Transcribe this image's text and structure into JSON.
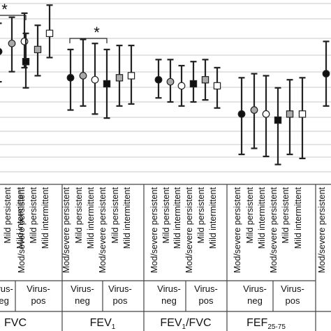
{
  "chart_data": {
    "type": "error-bar",
    "y_axis_visible": false,
    "grid": "horizontal",
    "legend": "none",
    "colors": {
      "mod_severe_persistent": "#111111",
      "mild_persistent": "#a9a9a9",
      "mild_intermittent": "#ffffff",
      "square_dark": "#111111",
      "square_mid": "#aaaaaa",
      "square_white": "#ffffff",
      "outline": "#222222"
    },
    "marker_shapes": {
      "virus_neg": "circle",
      "virus_pos": "square"
    },
    "subgroup_labels": [
      "Mod/severe persistent",
      "Mild persistent",
      "Mild intermittent"
    ],
    "virus_labels": {
      "neg": [
        "Virus-",
        "neg"
      ],
      "pos": [
        "Virus-",
        "pos"
      ],
      "neg_cut": [
        "Virus-",
        "neg"
      ]
    },
    "significance_marker": "*",
    "groups": [
      {
        "key": "fvc",
        "label": "FVC",
        "sub": "",
        "significance": "*",
        "series": [
          {
            "subgroup": "Mod/severe persistent",
            "virus": "neg",
            "shape": "circle",
            "fill": "#111111",
            "mean": 0.55,
            "low": -0.2,
            "high": 1.25
          },
          {
            "subgroup": "Mild persistent",
            "virus": "neg",
            "shape": "circle",
            "fill": "#a9a9a9",
            "mean": 0.75,
            "low": 0.05,
            "high": 1.4
          },
          {
            "subgroup": "Mild intermittent",
            "virus": "neg",
            "shape": "circle",
            "fill": "#ffffff",
            "mean": 0.8,
            "low": 0.15,
            "high": 1.5
          },
          {
            "subgroup": "Mod/severe persistent",
            "virus": "pos",
            "shape": "square",
            "fill": "#111111",
            "mean": 0.3,
            "low": -0.35,
            "high": 1.0
          },
          {
            "subgroup": "Mild persistent",
            "virus": "pos",
            "shape": "square",
            "fill": "#aaaaaa",
            "mean": 0.6,
            "low": -0.05,
            "high": 1.2
          },
          {
            "subgroup": "Mild intermittent",
            "virus": "pos",
            "shape": "square",
            "fill": "#ffffff",
            "mean": 1.0,
            "low": 0.4,
            "high": 1.7
          }
        ]
      },
      {
        "key": "fev1",
        "label": "FEV",
        "sub": "1",
        "significance": "*",
        "series": [
          {
            "subgroup": "Mod/severe persistent",
            "virus": "neg",
            "shape": "circle",
            "fill": "#111111",
            "mean": -0.1,
            "low": -0.9,
            "high": 0.6
          },
          {
            "subgroup": "Mild persistent",
            "virus": "neg",
            "shape": "circle",
            "fill": "#a9a9a9",
            "mean": -0.05,
            "low": -0.8,
            "high": 0.85
          },
          {
            "subgroup": "Mild intermittent",
            "virus": "neg",
            "shape": "circle",
            "fill": "#ffffff",
            "mean": -0.15,
            "low": -1.0,
            "high": 0.75
          },
          {
            "subgroup": "Mod/severe persistent",
            "virus": "pos",
            "shape": "square",
            "fill": "#111111",
            "mean": -0.25,
            "low": -1.1,
            "high": 0.6
          },
          {
            "subgroup": "Mild persistent",
            "virus": "pos",
            "shape": "square",
            "fill": "#aaaaaa",
            "mean": -0.1,
            "low": -0.8,
            "high": 0.7
          },
          {
            "subgroup": "Mild intermittent",
            "virus": "pos",
            "shape": "square",
            "fill": "#ffffff",
            "mean": -0.05,
            "low": -0.75,
            "high": 0.7
          }
        ]
      },
      {
        "key": "fev1fvc",
        "label": "FEV",
        "sub": "1",
        "suffix": "/FVC",
        "significance": "",
        "series": [
          {
            "subgroup": "Mod/severe persistent",
            "virus": "neg",
            "shape": "circle",
            "fill": "#111111",
            "mean": -0.15,
            "low": -0.6,
            "high": 0.35
          },
          {
            "subgroup": "Mild persistent",
            "virus": "neg",
            "shape": "circle",
            "fill": "#a9a9a9",
            "mean": -0.2,
            "low": -0.7,
            "high": 0.35
          },
          {
            "subgroup": "Mild intermittent",
            "virus": "neg",
            "shape": "circle",
            "fill": "#ffffff",
            "mean": -0.3,
            "low": -0.8,
            "high": 0.2
          },
          {
            "subgroup": "Mod/severe persistent",
            "virus": "pos",
            "shape": "square",
            "fill": "#111111",
            "mean": -0.25,
            "low": -0.7,
            "high": 0.3
          },
          {
            "subgroup": "Mild persistent",
            "virus": "pos",
            "shape": "square",
            "fill": "#aaaaaa",
            "mean": -0.15,
            "low": -0.65,
            "high": 0.35
          },
          {
            "subgroup": "Mild intermittent",
            "virus": "pos",
            "shape": "square",
            "fill": "#ffffff",
            "mean": -0.3,
            "low": -0.85,
            "high": 0.15
          }
        ]
      },
      {
        "key": "fef2575",
        "label": "FEF",
        "sub": "25-75",
        "significance": "",
        "series": [
          {
            "subgroup": "Mod/severe persistent",
            "virus": "neg",
            "shape": "circle",
            "fill": "#111111",
            "mean": -1.0,
            "low": -2.0,
            "high": -0.1
          },
          {
            "subgroup": "Mild persistent",
            "virus": "neg",
            "shape": "circle",
            "fill": "#a9a9a9",
            "mean": -0.9,
            "low": -1.85,
            "high": 0.0
          },
          {
            "subgroup": "Mild intermittent",
            "virus": "neg",
            "shape": "circle",
            "fill": "#ffffff",
            "mean": -1.0,
            "low": -2.05,
            "high": -0.05
          },
          {
            "subgroup": "Mod/severe persistent",
            "virus": "pos",
            "shape": "square",
            "fill": "#111111",
            "mean": -1.15,
            "low": -2.25,
            "high": -0.35
          },
          {
            "subgroup": "Mild persistent",
            "virus": "pos",
            "shape": "square",
            "fill": "#aaaaaa",
            "mean": -1.0,
            "low": -2.0,
            "high": -0.15
          },
          {
            "subgroup": "Mild intermittent",
            "virus": "pos",
            "shape": "square",
            "fill": "#ffffff",
            "mean": -1.0,
            "low": -2.1,
            "high": -0.1
          }
        ]
      },
      {
        "key": "cut_off",
        "label": "",
        "sub": "",
        "significance": "",
        "series": [
          {
            "subgroup": "Mod/severe persistent",
            "virus": "neg",
            "shape": "circle",
            "fill": "#111111",
            "mean": 0.0,
            "low": -0.8,
            "high": 0.8
          }
        ]
      }
    ]
  }
}
